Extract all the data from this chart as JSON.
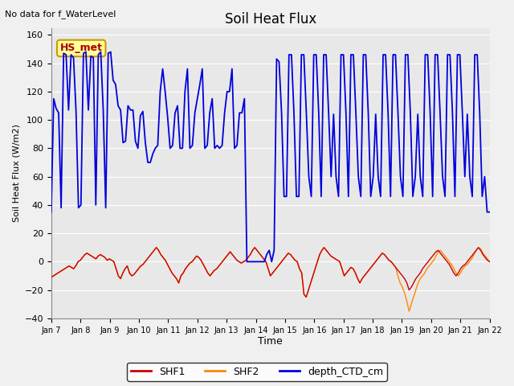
{
  "title": "Soil Heat Flux",
  "subtitle": "No data for f_WaterLevel",
  "ylabel": "Soil Heat Flux (W/m2)",
  "xlabel": "Time",
  "ylim": [
    -40,
    165
  ],
  "yticks": [
    -40,
    -20,
    0,
    20,
    40,
    60,
    80,
    100,
    120,
    140,
    160
  ],
  "xtick_labels": [
    "Jan 7",
    "Jan 8",
    "Jan 9",
    "Jan 10",
    "Jan 11",
    "Jan 12",
    "Jan 13",
    "Jan 14",
    "Jan 15",
    "Jan 16",
    "Jan 17",
    "Jan 18",
    "Jan 19",
    "Jan 20",
    "Jan 21",
    "Jan 22"
  ],
  "legend_labels": [
    "SHF1",
    "SHF2",
    "depth_CTD_cm"
  ],
  "annotation_text": "HS_met",
  "annotation_color": "#aa0000",
  "annotation_bg": "#ffff99",
  "annotation_border": "#cc9900",
  "bg_color": "#e8e8e8",
  "grid_color": "#ffffff",
  "shf1_color": "#cc0000",
  "shf2_color": "#ff8800",
  "depth_color": "#0000dd",
  "fig_facecolor": "#f0f0f0",
  "depth": [
    35,
    115,
    108,
    105,
    38,
    147,
    146,
    107,
    146,
    144,
    107,
    38,
    40,
    147,
    148,
    107,
    145,
    144,
    40,
    146,
    148,
    107,
    38,
    147,
    148,
    128,
    125,
    110,
    107,
    84,
    85,
    110,
    107,
    107,
    85,
    80,
    103,
    106,
    84,
    70,
    70,
    76,
    80,
    82,
    120,
    136,
    120,
    102,
    80,
    82,
    105,
    110,
    80,
    80,
    120,
    136,
    80,
    82,
    105,
    115,
    125,
    136,
    80,
    82,
    105,
    115,
    80,
    82,
    80,
    82,
    105,
    120,
    120,
    136,
    80,
    82,
    105,
    105,
    115,
    0,
    0,
    0,
    0,
    0,
    0,
    0,
    0,
    5,
    8,
    0,
    8,
    143,
    141,
    105,
    46,
    46,
    146,
    146,
    105,
    46,
    46,
    146,
    146,
    105,
    60,
    46,
    146,
    146,
    105,
    46,
    146,
    146,
    105,
    60,
    104,
    60,
    46,
    146,
    146,
    105,
    46,
    146,
    146,
    105,
    60,
    46,
    146,
    146,
    105,
    46,
    60,
    104,
    60,
    46,
    146,
    146,
    105,
    46,
    146,
    146,
    105,
    60,
    46,
    146,
    146,
    105,
    46,
    60,
    104,
    60,
    46,
    146,
    146,
    105,
    46,
    146,
    146,
    105,
    60,
    46,
    146,
    146,
    105,
    46,
    146,
    146,
    105,
    60,
    104,
    60,
    46,
    146,
    146,
    105,
    46,
    60,
    35,
    35
  ],
  "shf1": [
    -11,
    -10,
    -9,
    -8,
    -7,
    -6,
    -5,
    -4,
    -3,
    -4,
    -5,
    -3,
    0,
    1,
    3,
    5,
    6,
    5,
    4,
    3,
    2,
    4,
    5,
    4,
    3,
    1,
    2,
    1,
    0,
    -5,
    -10,
    -12,
    -8,
    -5,
    -3,
    -8,
    -10,
    -9,
    -7,
    -5,
    -3,
    -2,
    0,
    2,
    4,
    6,
    8,
    10,
    8,
    5,
    3,
    1,
    -2,
    -5,
    -8,
    -10,
    -12,
    -15,
    -10,
    -8,
    -5,
    -3,
    -1,
    0,
    2,
    4,
    3,
    1,
    -2,
    -5,
    -8,
    -10,
    -8,
    -6,
    -5,
    -3,
    -1,
    1,
    3,
    5,
    7,
    5,
    3,
    1,
    0,
    -1,
    0,
    1,
    3,
    5,
    8,
    10,
    8,
    6,
    4,
    2,
    0,
    -5,
    -10,
    -8,
    -6,
    -4,
    -2,
    0,
    2,
    4,
    6,
    5,
    3,
    1,
    0,
    -5,
    -8,
    -23,
    -25,
    -20,
    -15,
    -10,
    -5,
    0,
    5,
    8,
    10,
    8,
    6,
    4,
    3,
    2,
    1,
    0,
    -5,
    -10,
    -8,
    -6,
    -4,
    -5,
    -8,
    -12,
    -15,
    -12,
    -10,
    -8,
    -6,
    -4,
    -2,
    0,
    2,
    4,
    6,
    5,
    3,
    1,
    0,
    -2,
    -4,
    -6,
    -8,
    -10,
    -12,
    -15,
    -20,
    -18,
    -15,
    -12,
    -10,
    -8,
    -5,
    -3,
    -1,
    1,
    3,
    5,
    7,
    8,
    6,
    4,
    2,
    0,
    -2,
    -5,
    -8,
    -10,
    -8,
    -5,
    -3,
    -2,
    0,
    2,
    4,
    6,
    8,
    10,
    8,
    5,
    3,
    1,
    0
  ],
  "shf2": [
    -11,
    -10,
    -9,
    -8,
    -7,
    -6,
    -5,
    -4,
    -3,
    -4,
    -5,
    -3,
    0,
    1,
    3,
    5,
    6,
    5,
    4,
    3,
    2,
    4,
    5,
    4,
    3,
    1,
    2,
    1,
    0,
    -5,
    -10,
    -12,
    -8,
    -5,
    -3,
    -8,
    -10,
    -9,
    -7,
    -5,
    -3,
    -2,
    0,
    2,
    4,
    6,
    8,
    10,
    8,
    5,
    3,
    1,
    -2,
    -5,
    -8,
    -10,
    -12,
    -15,
    -10,
    -8,
    -5,
    -3,
    -1,
    0,
    2,
    4,
    3,
    1,
    -2,
    -5,
    -8,
    -10,
    -8,
    -6,
    -5,
    -3,
    -1,
    1,
    3,
    5,
    7,
    5,
    3,
    1,
    0,
    -1,
    0,
    1,
    3,
    5,
    8,
    10,
    8,
    6,
    4,
    2,
    0,
    -5,
    -10,
    -8,
    -6,
    -4,
    -2,
    0,
    2,
    4,
    6,
    5,
    3,
    1,
    0,
    -5,
    -8,
    -23,
    -25,
    -20,
    -15,
    -10,
    -5,
    0,
    5,
    8,
    10,
    8,
    6,
    4,
    3,
    2,
    1,
    0,
    -5,
    -10,
    -8,
    -6,
    -4,
    -5,
    -8,
    -12,
    -15,
    -12,
    -10,
    -8,
    -6,
    -4,
    -2,
    0,
    2,
    4,
    6,
    5,
    3,
    1,
    0,
    -2,
    -4,
    -10,
    -15,
    -18,
    -22,
    -28,
    -35,
    -30,
    -25,
    -20,
    -15,
    -12,
    -10,
    -8,
    -5,
    -3,
    -1,
    1,
    4,
    7,
    8,
    6,
    4,
    2,
    0,
    -2,
    -5,
    -8,
    -10,
    -8,
    -5,
    -3,
    -2,
    0,
    2,
    5,
    8,
    10,
    9,
    6,
    4,
    2,
    0
  ]
}
